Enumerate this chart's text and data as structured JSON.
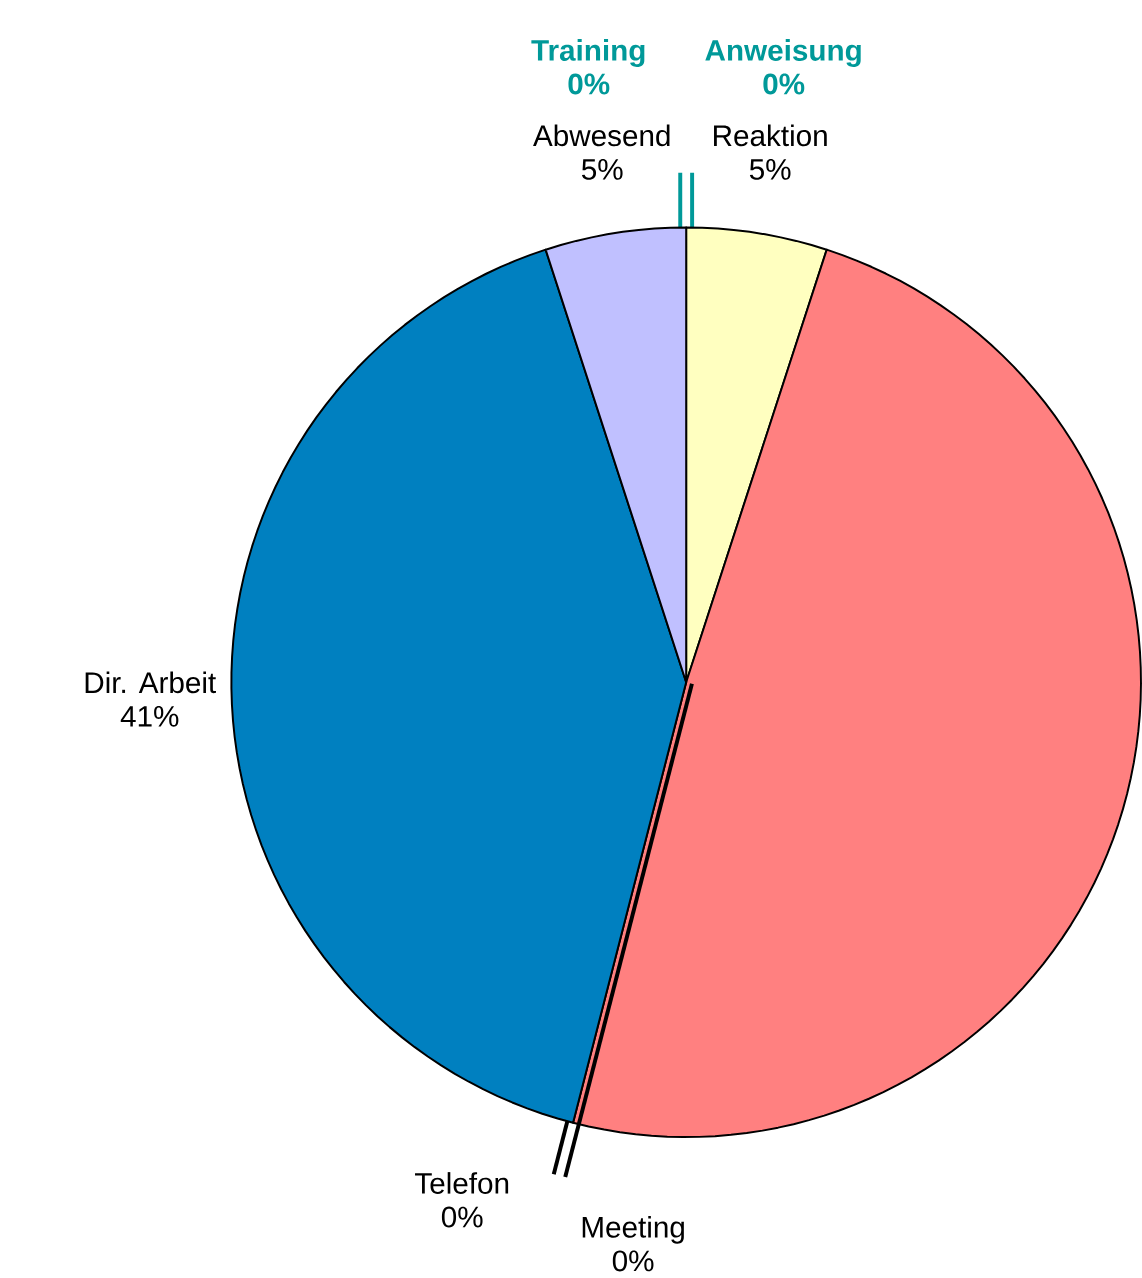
{
  "chart_data": {
    "type": "pie",
    "categories": [
      "Training",
      "Anweisung",
      "Reaktion",
      null,
      "Meeting",
      "Telefon",
      "Dir. Arbeit",
      "Abwesend"
    ],
    "values": [
      0,
      0,
      5,
      49,
      0,
      0,
      41,
      5
    ],
    "colors": [
      "#009999",
      "#009999",
      "#ffffc0",
      "#ff8080",
      "#000000",
      "#000000",
      "#0080c0",
      "#c0c0ff"
    ],
    "value_labels": [
      "0%",
      "0%",
      "5%",
      null,
      "0%",
      "0%",
      "41%",
      "5%"
    ]
  }
}
